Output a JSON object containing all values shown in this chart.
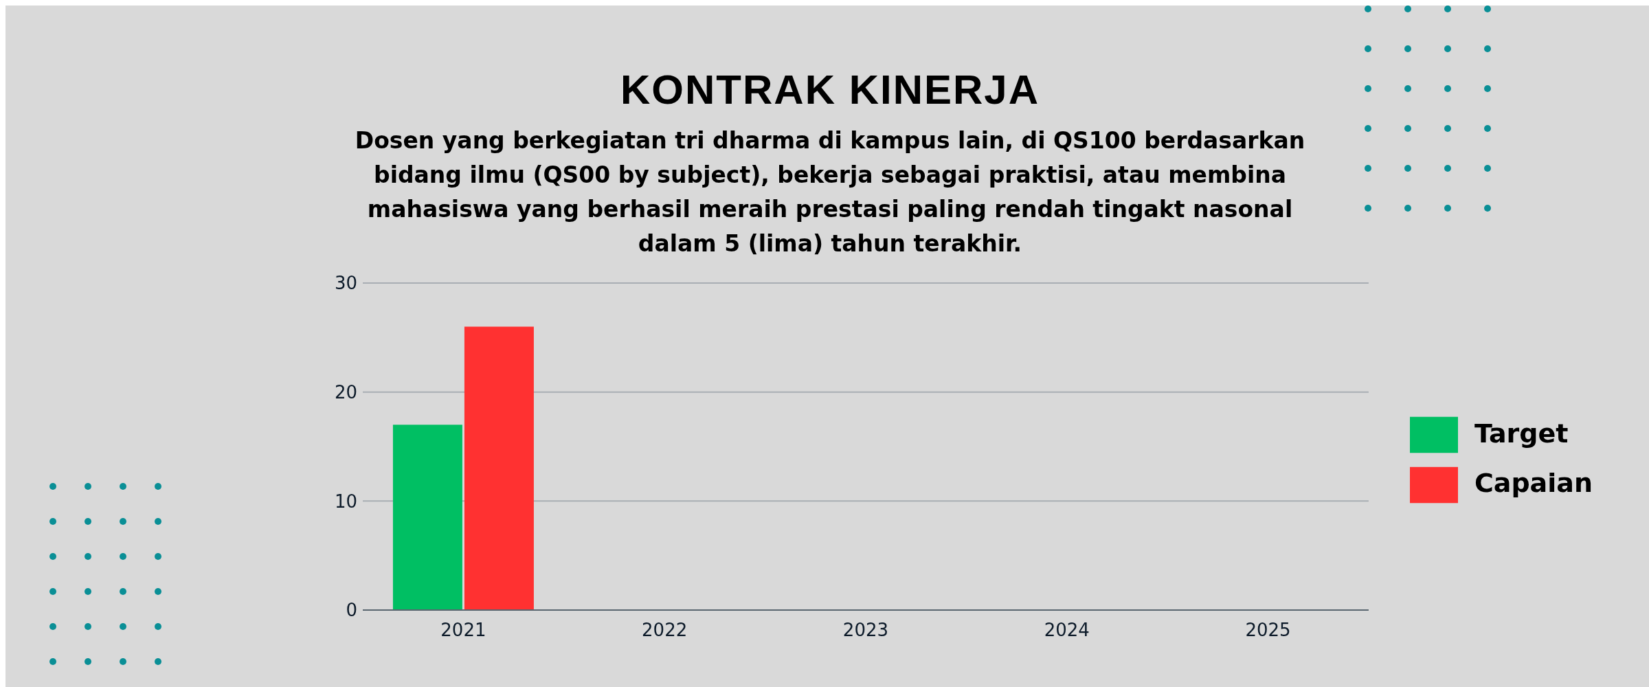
{
  "chart_data": {
    "type": "bar",
    "title": "KONTRAK KINERJA",
    "subtitle": "Dosen yang berkegiatan tri dharma di kampus lain, di QS100 berdasarkan bidang ilmu (QS00 by subject), bekerja sebagai praktisi, atau membina mahasiswa yang berhasil meraih prestasi paling rendah tingakt nasonal dalam 5 (lima) tahun terakhir.",
    "categories": [
      "2021",
      "2022",
      "2023",
      "2024",
      "2025"
    ],
    "series": [
      {
        "name": "Target",
        "color": "#00bf63",
        "values": [
          17,
          null,
          null,
          null,
          null
        ]
      },
      {
        "name": "Capaian",
        "color": "#ff3131",
        "values": [
          26,
          null,
          null,
          null,
          null
        ]
      }
    ],
    "ylim": [
      0,
      30
    ],
    "yticks": [
      0,
      10,
      20,
      30
    ],
    "grid": "y",
    "legend": "right"
  }
}
